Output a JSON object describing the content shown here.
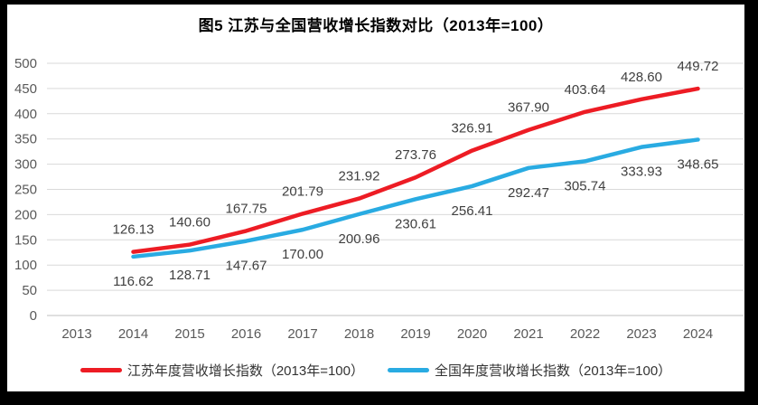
{
  "chart_data": {
    "type": "line",
    "title": "图5  江苏与全国营收增长指数对比（2013年=100）",
    "categories": [
      "2013",
      "2014",
      "2015",
      "2016",
      "2017",
      "2018",
      "2019",
      "2020",
      "2021",
      "2022",
      "2023",
      "2024"
    ],
    "series": [
      {
        "id": "jiangsu",
        "name": "江苏年度营收增长指数（2013年=100）",
        "color": "#ED1C24",
        "values": [
          null,
          126.13,
          140.6,
          167.75,
          201.79,
          231.92,
          273.76,
          326.91,
          367.9,
          403.64,
          428.6,
          449.72
        ]
      },
      {
        "id": "national",
        "name": "全国年度营收增长指数（2013年=100）",
        "color": "#29ABE2",
        "values": [
          null,
          116.62,
          128.71,
          147.67,
          170.0,
          200.96,
          230.61,
          256.41,
          292.47,
          305.74,
          333.93,
          348.65
        ]
      }
    ],
    "xlabel": "",
    "ylabel": "",
    "ylim": [
      0,
      500
    ],
    "ytick_step": 50,
    "grid": true,
    "legend_position": "bottom",
    "label_decimals": 2
  },
  "colors": {
    "background": "#ffffff",
    "frame": "#000000",
    "gridline": "#d9d9d9",
    "axis": "#bfbfbf",
    "tick_text": "#595959",
    "data_label_text": "#3f3f3f",
    "title_text": "#000000"
  }
}
